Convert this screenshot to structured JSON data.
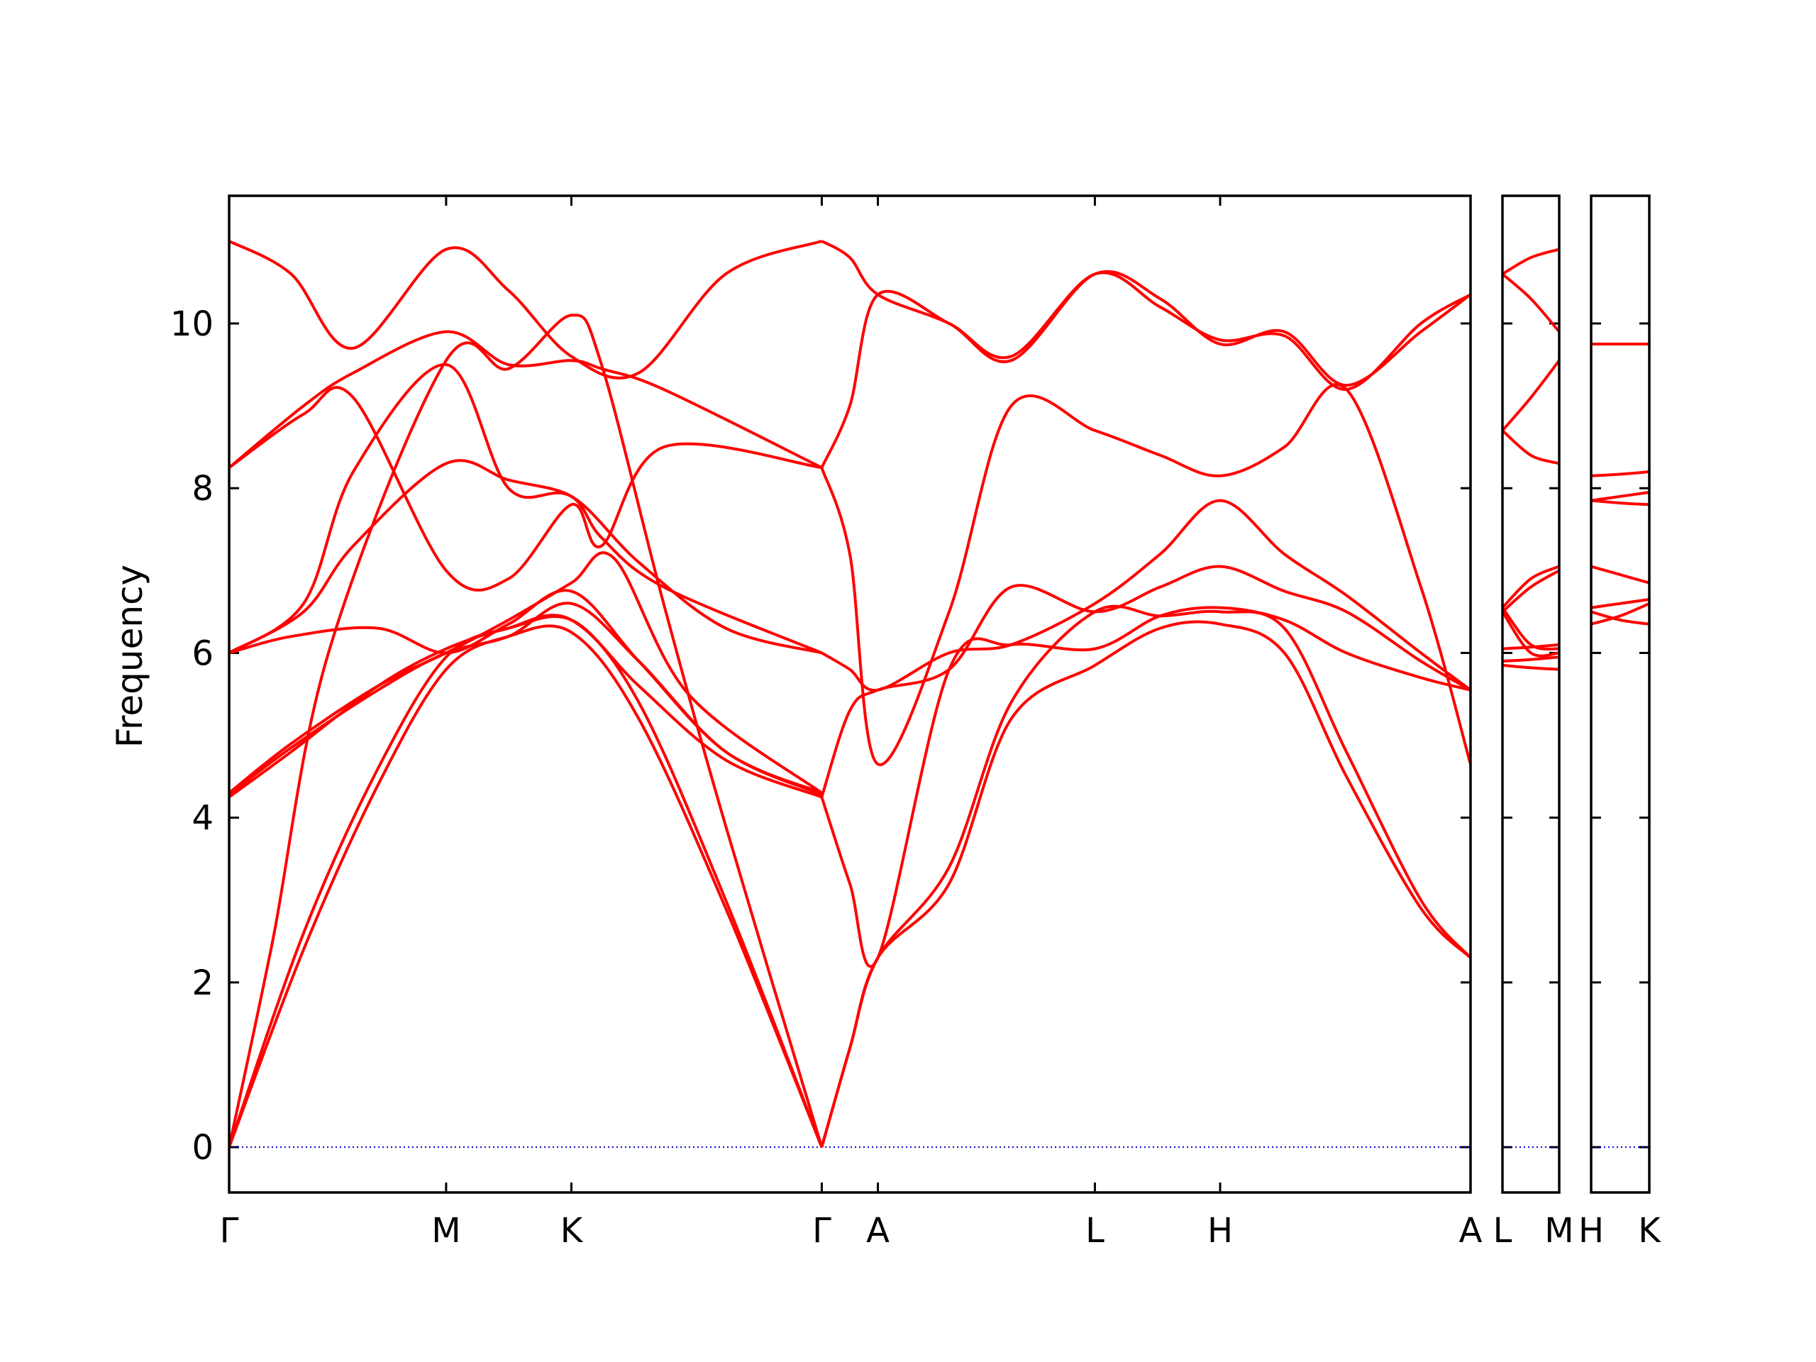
{
  "chart_data": {
    "type": "line",
    "title": "",
    "ylabel": "Frequency",
    "xlabel": "",
    "ylim": [
      -0.55,
      11.55
    ],
    "yticks": [
      0,
      2,
      4,
      6,
      8,
      10
    ],
    "grid": false,
    "legend": "none",
    "line_color": "#ff0000",
    "zero_line_color": "#0000cc",
    "panels": [
      {
        "name": "panel-main",
        "xlim": [
          0,
          10
        ],
        "xticks": [
          {
            "label": "Γ",
            "x": 0.0
          },
          {
            "label": "M",
            "x": 1.748
          },
          {
            "label": "K",
            "x": 2.757
          },
          {
            "label": "Γ",
            "x": 4.774
          },
          {
            "label": "A",
            "x": 5.226
          },
          {
            "label": "L",
            "x": 6.974
          },
          {
            "label": "H",
            "x": 7.983
          },
          {
            "label": "A",
            "x": 10.0
          }
        ],
        "series": [
          {
            "x": [
              0,
              0.6,
              1.2,
              1.748,
              2.25,
              2.757,
              3.3,
              4.0,
              4.774
            ],
            "y": [
              0,
              2.4,
              4.4,
              5.8,
              6.2,
              6.25,
              5.2,
              2.9,
              0
            ]
          },
          {
            "x": [
              0,
              0.6,
              1.2,
              1.748,
              2.25,
              2.757,
              3.3,
              4.0,
              4.774
            ],
            "y": [
              0,
              2.6,
              4.6,
              5.95,
              6.3,
              6.4,
              5.4,
              3.0,
              0
            ]
          },
          {
            "x": [
              0,
              0.35,
              0.8,
              1.748,
              2.25,
              2.757,
              3.0,
              3.5,
              4.0,
              4.774
            ],
            "y": [
              0,
              2.5,
              6.0,
              9.55,
              9.45,
              10.1,
              9.5,
              6.6,
              3.9,
              0
            ]
          },
          {
            "x": [
              0,
              0.5,
              1.2,
              1.748,
              2.25,
              2.757,
              3.3,
              4.0,
              4.774
            ],
            "y": [
              4.25,
              4.8,
              5.6,
              6.05,
              6.3,
              6.4,
              5.6,
              4.7,
              4.25
            ]
          },
          {
            "x": [
              0,
              0.5,
              1.2,
              1.748,
              2.25,
              2.757,
              3.3,
              4.0,
              4.774
            ],
            "y": [
              4.28,
              4.85,
              5.55,
              6.0,
              6.2,
              6.6,
              5.9,
              4.8,
              4.28
            ]
          },
          {
            "x": [
              0,
              0.5,
              1.2,
              1.748,
              2.25,
              2.757,
              3.1,
              3.7,
              4.774
            ],
            "y": [
              4.3,
              4.9,
              5.6,
              6.0,
              6.4,
              6.85,
              7.15,
              5.5,
              4.3
            ]
          },
          {
            "x": [
              0,
              0.5,
              1.2,
              1.748,
              2.25,
              2.757,
              3.3,
              4.0,
              4.774
            ],
            "y": [
              6.0,
              6.2,
              6.3,
              6.0,
              6.35,
              6.75,
              5.9,
              4.8,
              4.3
            ]
          },
          {
            "x": [
              0,
              0.6,
              1.0,
              1.748,
              2.25,
              2.757,
              3.3,
              4.0,
              4.774
            ],
            "y": [
              6.0,
              6.6,
              8.2,
              9.5,
              8.0,
              7.9,
              7.1,
              6.3,
              6.0
            ]
          },
          {
            "x": [
              0,
              0.6,
              1.0,
              1.748,
              2.25,
              2.757,
              3.0,
              3.5,
              4.774
            ],
            "y": [
              6.0,
              6.5,
              7.3,
              8.3,
              8.1,
              7.9,
              7.4,
              6.8,
              6.0
            ]
          },
          {
            "x": [
              0,
              0.6,
              1.0,
              1.748,
              2.25,
              2.757,
              3.0,
              3.5,
              4.774
            ],
            "y": [
              8.25,
              8.9,
              9.1,
              7.0,
              6.9,
              7.8,
              7.3,
              8.5,
              8.25
            ]
          },
          {
            "x": [
              0,
              0.6,
              1.0,
              1.748,
              2.25,
              2.757,
              3.0,
              3.5,
              4.774
            ],
            "y": [
              8.25,
              9.0,
              9.4,
              9.9,
              9.5,
              9.55,
              9.45,
              9.2,
              8.25
            ]
          },
          {
            "x": [
              0,
              0.5,
              1.0,
              1.748,
              2.25,
              2.757,
              3.3,
              4.0,
              4.774
            ],
            "y": [
              11.0,
              10.6,
              9.7,
              10.9,
              10.4,
              9.6,
              9.4,
              10.6,
              11.0
            ]
          },
          {
            "x": [
              4.774,
              5.0,
              5.226,
              5.8,
              6.3,
              6.974,
              7.5,
              7.983,
              8.5,
              9.0,
              9.6,
              10.0
            ],
            "y": [
              0,
              1.2,
              2.3,
              3.2,
              5.2,
              5.85,
              6.3,
              6.35,
              6.0,
              4.5,
              2.9,
              2.3
            ]
          },
          {
            "x": [
              4.774,
              5.0,
              5.226,
              5.8,
              6.3,
              6.974,
              7.5,
              7.983,
              8.5,
              9.0,
              9.6,
              10.0
            ],
            "y": [
              0,
              1.2,
              2.3,
              3.4,
              5.4,
              6.5,
              6.45,
              6.5,
              6.3,
              4.8,
              3.0,
              2.3
            ]
          },
          {
            "x": [
              4.774,
              5.0,
              5.226,
              5.8,
              6.3,
              6.974,
              7.5,
              7.983,
              8.5,
              9.0,
              9.6,
              10.0
            ],
            "y": [
              4.25,
              3.2,
              2.3,
              5.8,
              6.1,
              6.05,
              6.45,
              6.55,
              6.4,
              6.0,
              5.7,
              5.55
            ]
          },
          {
            "x": [
              4.774,
              5.0,
              5.226,
              5.8,
              6.3,
              6.974,
              7.5,
              7.983,
              8.5,
              9.0,
              9.6,
              10.0
            ],
            "y": [
              4.25,
              5.3,
              5.55,
              5.8,
              6.8,
              6.5,
              6.8,
              7.05,
              6.75,
              6.5,
              5.9,
              5.55
            ]
          },
          {
            "x": [
              4.774,
              5.0,
              5.226,
              5.8,
              6.3,
              6.974,
              7.5,
              7.983,
              8.5,
              9.0,
              9.6,
              10.0
            ],
            "y": [
              6.0,
              5.8,
              5.55,
              6.0,
              6.1,
              6.6,
              7.2,
              7.85,
              7.2,
              6.7,
              6.0,
              5.55
            ]
          },
          {
            "x": [
              4.774,
              5.0,
              5.226,
              5.8,
              6.3,
              6.974,
              7.5,
              7.983,
              8.5,
              9.0,
              9.6,
              10.0
            ],
            "y": [
              8.25,
              7.2,
              4.65,
              6.5,
              9.0,
              8.7,
              8.4,
              8.15,
              8.5,
              9.2,
              6.8,
              4.65
            ]
          },
          {
            "x": [
              4.774,
              5.0,
              5.226,
              5.8,
              6.3,
              6.974,
              7.5,
              7.983,
              8.5,
              9.0,
              9.6,
              10.0
            ],
            "y": [
              11.0,
              10.8,
              10.35,
              10.0,
              9.55,
              10.6,
              10.3,
              9.75,
              9.9,
              9.25,
              9.9,
              10.35
            ]
          },
          {
            "x": [
              4.774,
              5.0,
              5.226,
              5.8,
              6.3,
              6.974,
              7.5,
              7.983,
              8.5,
              9.0,
              9.6,
              10.0
            ],
            "y": [
              8.25,
              9.0,
              10.35,
              10.0,
              9.6,
              10.6,
              10.2,
              9.8,
              9.85,
              9.2,
              10.0,
              10.35
            ]
          }
        ]
      },
      {
        "name": "panel-l-m",
        "xlim": [
          0,
          1
        ],
        "xticks": [
          {
            "label": "L",
            "x": 0.0
          },
          {
            "label": "M",
            "x": 1.0
          }
        ],
        "series": [
          {
            "x": [
              0,
              0.5,
              1
            ],
            "y": [
              5.85,
              5.82,
              5.8
            ]
          },
          {
            "x": [
              0,
              0.5,
              1
            ],
            "y": [
              5.9,
              5.92,
              5.95
            ]
          },
          {
            "x": [
              0,
              0.5,
              1
            ],
            "y": [
              6.05,
              6.07,
              6.1
            ]
          },
          {
            "x": [
              0,
              0.5,
              1
            ],
            "y": [
              6.5,
              6.0,
              6.0
            ]
          },
          {
            "x": [
              0,
              0.5,
              1
            ],
            "y": [
              6.55,
              6.1,
              6.05
            ]
          },
          {
            "x": [
              0,
              0.5,
              1
            ],
            "y": [
              6.5,
              6.8,
              7.0
            ]
          },
          {
            "x": [
              0,
              0.5,
              1
            ],
            "y": [
              6.55,
              6.9,
              7.05
            ]
          },
          {
            "x": [
              0,
              0.5,
              1
            ],
            "y": [
              8.7,
              8.4,
              8.3
            ]
          },
          {
            "x": [
              0,
              0.5,
              1
            ],
            "y": [
              8.7,
              9.1,
              9.55
            ]
          },
          {
            "x": [
              0,
              0.5,
              1
            ],
            "y": [
              10.6,
              10.3,
              9.9
            ]
          },
          {
            "x": [
              0,
              0.5,
              1
            ],
            "y": [
              10.6,
              10.8,
              10.9
            ]
          }
        ]
      },
      {
        "name": "panel-h-k",
        "xlim": [
          0,
          1
        ],
        "xticks": [
          {
            "label": "H",
            "x": 0.0
          },
          {
            "label": "K",
            "x": 1.0
          }
        ],
        "series": [
          {
            "x": [
              0,
              0.5,
              1
            ],
            "y": [
              6.35,
              6.45,
              6.6
            ]
          },
          {
            "x": [
              0,
              0.5,
              1
            ],
            "y": [
              6.5,
              6.4,
              6.35
            ]
          },
          {
            "x": [
              0,
              0.5,
              1
            ],
            "y": [
              6.55,
              6.6,
              6.65
            ]
          },
          {
            "x": [
              0,
              0.5,
              1
            ],
            "y": [
              7.05,
              6.95,
              6.85
            ]
          },
          {
            "x": [
              0,
              0.5,
              1
            ],
            "y": [
              7.85,
              7.82,
              7.8
            ]
          },
          {
            "x": [
              0,
              0.5,
              1
            ],
            "y": [
              7.85,
              7.9,
              7.95
            ]
          },
          {
            "x": [
              0,
              0.5,
              1
            ],
            "y": [
              8.15,
              8.17,
              8.2
            ]
          },
          {
            "x": [
              0,
              0.5,
              1
            ],
            "y": [
              9.75,
              9.75,
              9.75
            ]
          }
        ]
      }
    ]
  }
}
